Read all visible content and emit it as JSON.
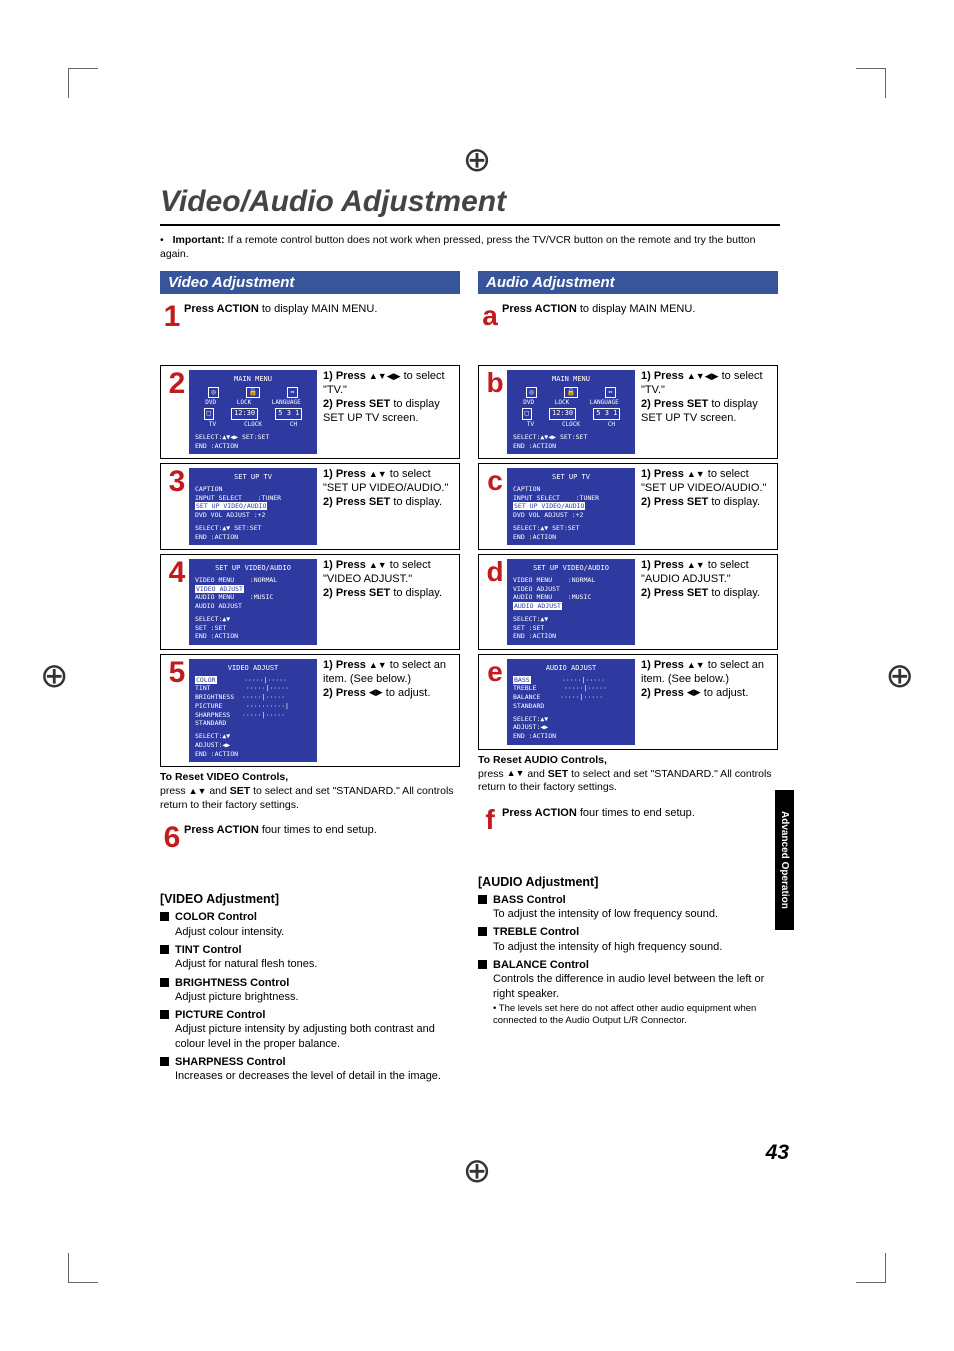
{
  "title": "Video/Audio Adjustment",
  "important": {
    "label": "Important:",
    "text": "If a remote control button does not work when pressed, press the TV/VCR button on the remote and try the button again."
  },
  "colors": {
    "heading_bg": "#38559b",
    "step_num": "#c21b1e",
    "screen_bg": "#2f3aa0"
  },
  "page_number": "43",
  "side_tab": "Advanced Operation",
  "video": {
    "heading": "Video Adjustment",
    "steps": [
      {
        "n": "1",
        "text_html": "<b>Press ACTION</b> to display MAIN MENU."
      },
      {
        "n": "2",
        "screen": "main_menu",
        "text_html": "<b>1)&nbsp;Press</b> <span class='tri'>▲▼◀▶</span> to select \"TV.\"<br><b>2)&nbsp;Press SET</b> to display SET UP TV screen."
      },
      {
        "n": "3",
        "screen": "setup_tv",
        "text_html": "<b>1)&nbsp;Press</b> <span class='tri'>▲▼</span> to select \"SET UP VIDEO/AUDIO.\"<br><b>2)&nbsp;Press SET</b> to display."
      },
      {
        "n": "4",
        "screen": "setup_va_v",
        "text_html": "<b>1)&nbsp;Press</b> <span class='tri'>▲▼</span> to select \"VIDEO ADJUST.\"<br><b>2)&nbsp;Press SET</b> to display."
      },
      {
        "n": "5",
        "screen": "video_adj",
        "text_html": "<b>1)&nbsp;Press</b> <span class='tri'>▲▼</span> to select an item. (See below.)<br><b>2)&nbsp;Press</b> <span class='tri'>◀▶</span> to adjust."
      },
      {
        "n": "6",
        "text_html": "<b>Press ACTION</b> four times to end setup."
      }
    ],
    "reset": {
      "head": "To Reset VIDEO Controls,",
      "body": "press <span class='tri'>▲▼</span> and <b>SET</b> to select and set \"STANDARD.\" All controls return to their factory settings."
    },
    "sub_head": "[VIDEO Adjustment]",
    "items": [
      {
        "h": "COLOR Control",
        "t": "Adjust colour intensity."
      },
      {
        "h": "TINT Control",
        "t": "Adjust for natural flesh tones."
      },
      {
        "h": "BRIGHTNESS Control",
        "t": "Adjust picture brightness."
      },
      {
        "h": "PICTURE Control",
        "t": "Adjust picture intensity by adjusting both contrast and colour level in the proper balance."
      },
      {
        "h": "SHARPNESS Control",
        "t": "Increases or decreases the level of detail in the image."
      }
    ]
  },
  "audio": {
    "heading": "Audio Adjustment",
    "steps": [
      {
        "n": "a",
        "text_html": "<b>Press ACTION</b> to display MAIN MENU."
      },
      {
        "n": "b",
        "screen": "main_menu",
        "text_html": "<b>1)&nbsp;Press</b> <span class='tri'>▲▼◀▶</span> to select \"TV.\"<br><b>2)&nbsp;Press SET</b> to display SET UP TV screen."
      },
      {
        "n": "c",
        "screen": "setup_tv",
        "text_html": "<b>1)&nbsp;Press</b> <span class='tri'>▲▼</span> to select \"SET UP VIDEO/AUDIO.\"<br><b>2)&nbsp;Press SET</b> to display."
      },
      {
        "n": "d",
        "screen": "setup_va_a",
        "text_html": "<b>1)&nbsp;Press</b> <span class='tri'>▲▼</span> to select \"AUDIO ADJUST.\"<br><b>2)&nbsp;Press SET</b> to display."
      },
      {
        "n": "e",
        "screen": "audio_adj",
        "text_html": "<b>1)&nbsp;Press</b> <span class='tri'>▲▼</span> to select an item. (See below.)<br><b>2)&nbsp;Press</b> <span class='tri'>◀▶</span> to adjust."
      },
      {
        "n": "f",
        "text_html": "<b>Press ACTION</b> four times to end setup."
      }
    ],
    "reset": {
      "head": "To Reset AUDIO Controls,",
      "body": "press <span class='tri'>▲▼</span> and <b>SET</b> to select and set \"STANDARD.\" All controls return to their factory settings."
    },
    "sub_head": "[AUDIO Adjustment]",
    "items": [
      {
        "h": "BASS Control",
        "t": "To adjust the intensity of low frequency sound."
      },
      {
        "h": "TREBLE Control",
        "t": "To adjust the intensity of high frequency sound."
      },
      {
        "h": "BALANCE Control",
        "t": "Controls the difference in audio level between the left or right speaker.",
        "sub": "The levels set here do not affect other audio equipment when connected to the Audio Output L/R Connector."
      }
    ]
  },
  "screens": {
    "main_menu": {
      "title": "MAIN MENU",
      "icon_row1": [
        "◎",
        "🔒",
        "⇔"
      ],
      "lbl_row1": [
        "DVD",
        "LOCK",
        "LANGUAGE"
      ],
      "icon_row2": [
        "□",
        "12:30",
        "5 3 1"
      ],
      "lbl_row2": [
        "TV",
        "CLOCK",
        "CH"
      ],
      "bottom": "SELECT:▲▼◀▶  SET:SET\nEND   :ACTION"
    },
    "setup_tv": {
      "title": "SET UP TV",
      "lines": [
        "CAPTION",
        "INPUT SELECT    :TUNER",
        "<hl>SET UP VIDEO/AUDIO</hl>",
        "DVD VOL ADJUST :+2"
      ],
      "bottom": "SELECT:▲▼     SET:SET\nEND   :ACTION"
    },
    "setup_va_v": {
      "title": "SET UP VIDEO/AUDIO",
      "lines": [
        "VIDEO MENU    :NORMAL",
        "<hl>VIDEO ADJUST</hl>",
        "AUDIO MENU    :MUSIC",
        "AUDIO ADJUST"
      ],
      "bottom": "SELECT:▲▼\nSET   :SET\nEND   :ACTION"
    },
    "setup_va_a": {
      "title": "SET UP VIDEO/AUDIO",
      "lines": [
        "VIDEO MENU    :NORMAL",
        "VIDEO ADJUST",
        "AUDIO MENU    :MUSIC",
        "<hl>AUDIO ADJUST</hl>"
      ],
      "bottom": "SELECT:▲▼\nSET   :SET\nEND   :ACTION"
    },
    "video_adj": {
      "title": "VIDEO ADJUST",
      "lines": [
        "<hl>COLOR</hl>       ·····|·····",
        "TINT         ·····|·····",
        "BRIGHTNESS  ·····|·····",
        "PICTURE      ··········|",
        "SHARPNESS   ·····|·····",
        "STANDARD"
      ],
      "bottom": "SELECT:▲▼\nADJUST:◀▶\nEND   :ACTION"
    },
    "audio_adj": {
      "title": "AUDIO ADJUST",
      "lines": [
        "<hl>BASS</hl>        ·····|·····",
        "TREBLE       ·····|·····",
        "BALANCE     ·····|·····",
        "STANDARD"
      ],
      "bottom": "SELECT:▲▼\nADJUST:◀▶\nEND   :ACTION"
    }
  }
}
